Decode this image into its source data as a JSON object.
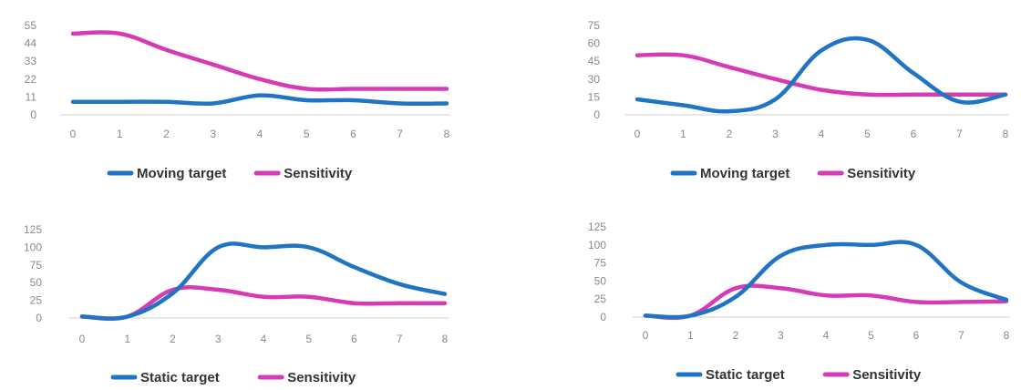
{
  "colors": {
    "blue": "#1f74c4",
    "magenta": "#d63bb5"
  },
  "chart_data": [
    {
      "type": "line",
      "x": [
        0,
        1,
        2,
        3,
        4,
        5,
        6,
        7,
        8
      ],
      "ylim": [
        0,
        55
      ],
      "yticks": [
        0,
        11,
        22,
        33,
        44,
        55
      ],
      "series": [
        {
          "name": "Moving target",
          "color": "#1f74c4",
          "values": [
            8,
            8,
            8,
            7,
            12,
            9,
            9,
            7,
            7
          ]
        },
        {
          "name": "Sensitivity",
          "color": "#d63bb5",
          "values": [
            50,
            50,
            40,
            31,
            22,
            16,
            16,
            16,
            16
          ]
        }
      ]
    },
    {
      "type": "line",
      "x": [
        0,
        1,
        2,
        3,
        4,
        5,
        6,
        7,
        8
      ],
      "ylim": [
        0,
        75
      ],
      "yticks": [
        0,
        15,
        30,
        45,
        60,
        75
      ],
      "series": [
        {
          "name": "Moving target",
          "color": "#1f74c4",
          "values": [
            13,
            8,
            3,
            13,
            54,
            63,
            35,
            11,
            17
          ]
        },
        {
          "name": "Sensitivity",
          "color": "#d63bb5",
          "values": [
            50,
            50,
            40,
            30,
            21,
            17,
            17,
            17,
            17
          ]
        }
      ]
    },
    {
      "type": "line",
      "x": [
        0,
        1,
        2,
        3,
        4,
        5,
        6,
        7,
        8
      ],
      "ylim": [
        0,
        125
      ],
      "yticks": [
        0,
        25,
        50,
        75,
        100,
        125
      ],
      "series": [
        {
          "name": "Static target",
          "color": "#1f74c4",
          "values": [
            2,
            2,
            35,
            100,
            100,
            100,
            72,
            48,
            34
          ]
        },
        {
          "name": "Sensitivity",
          "color": "#d63bb5",
          "values": [
            2,
            2,
            40,
            40,
            30,
            30,
            21,
            21,
            21
          ]
        }
      ]
    },
    {
      "type": "line",
      "x": [
        0,
        1,
        2,
        3,
        4,
        5,
        6,
        7,
        8
      ],
      "ylim": [
        0,
        125
      ],
      "yticks": [
        0,
        25,
        50,
        75,
        100,
        125
      ],
      "series": [
        {
          "name": "Static target",
          "color": "#1f74c4",
          "values": [
            2,
            2,
            28,
            85,
            100,
            100,
            100,
            48,
            24
          ]
        },
        {
          "name": "Sensitivity",
          "color": "#d63bb5",
          "values": [
            2,
            2,
            40,
            40,
            30,
            30,
            21,
            21,
            22
          ]
        }
      ]
    }
  ]
}
